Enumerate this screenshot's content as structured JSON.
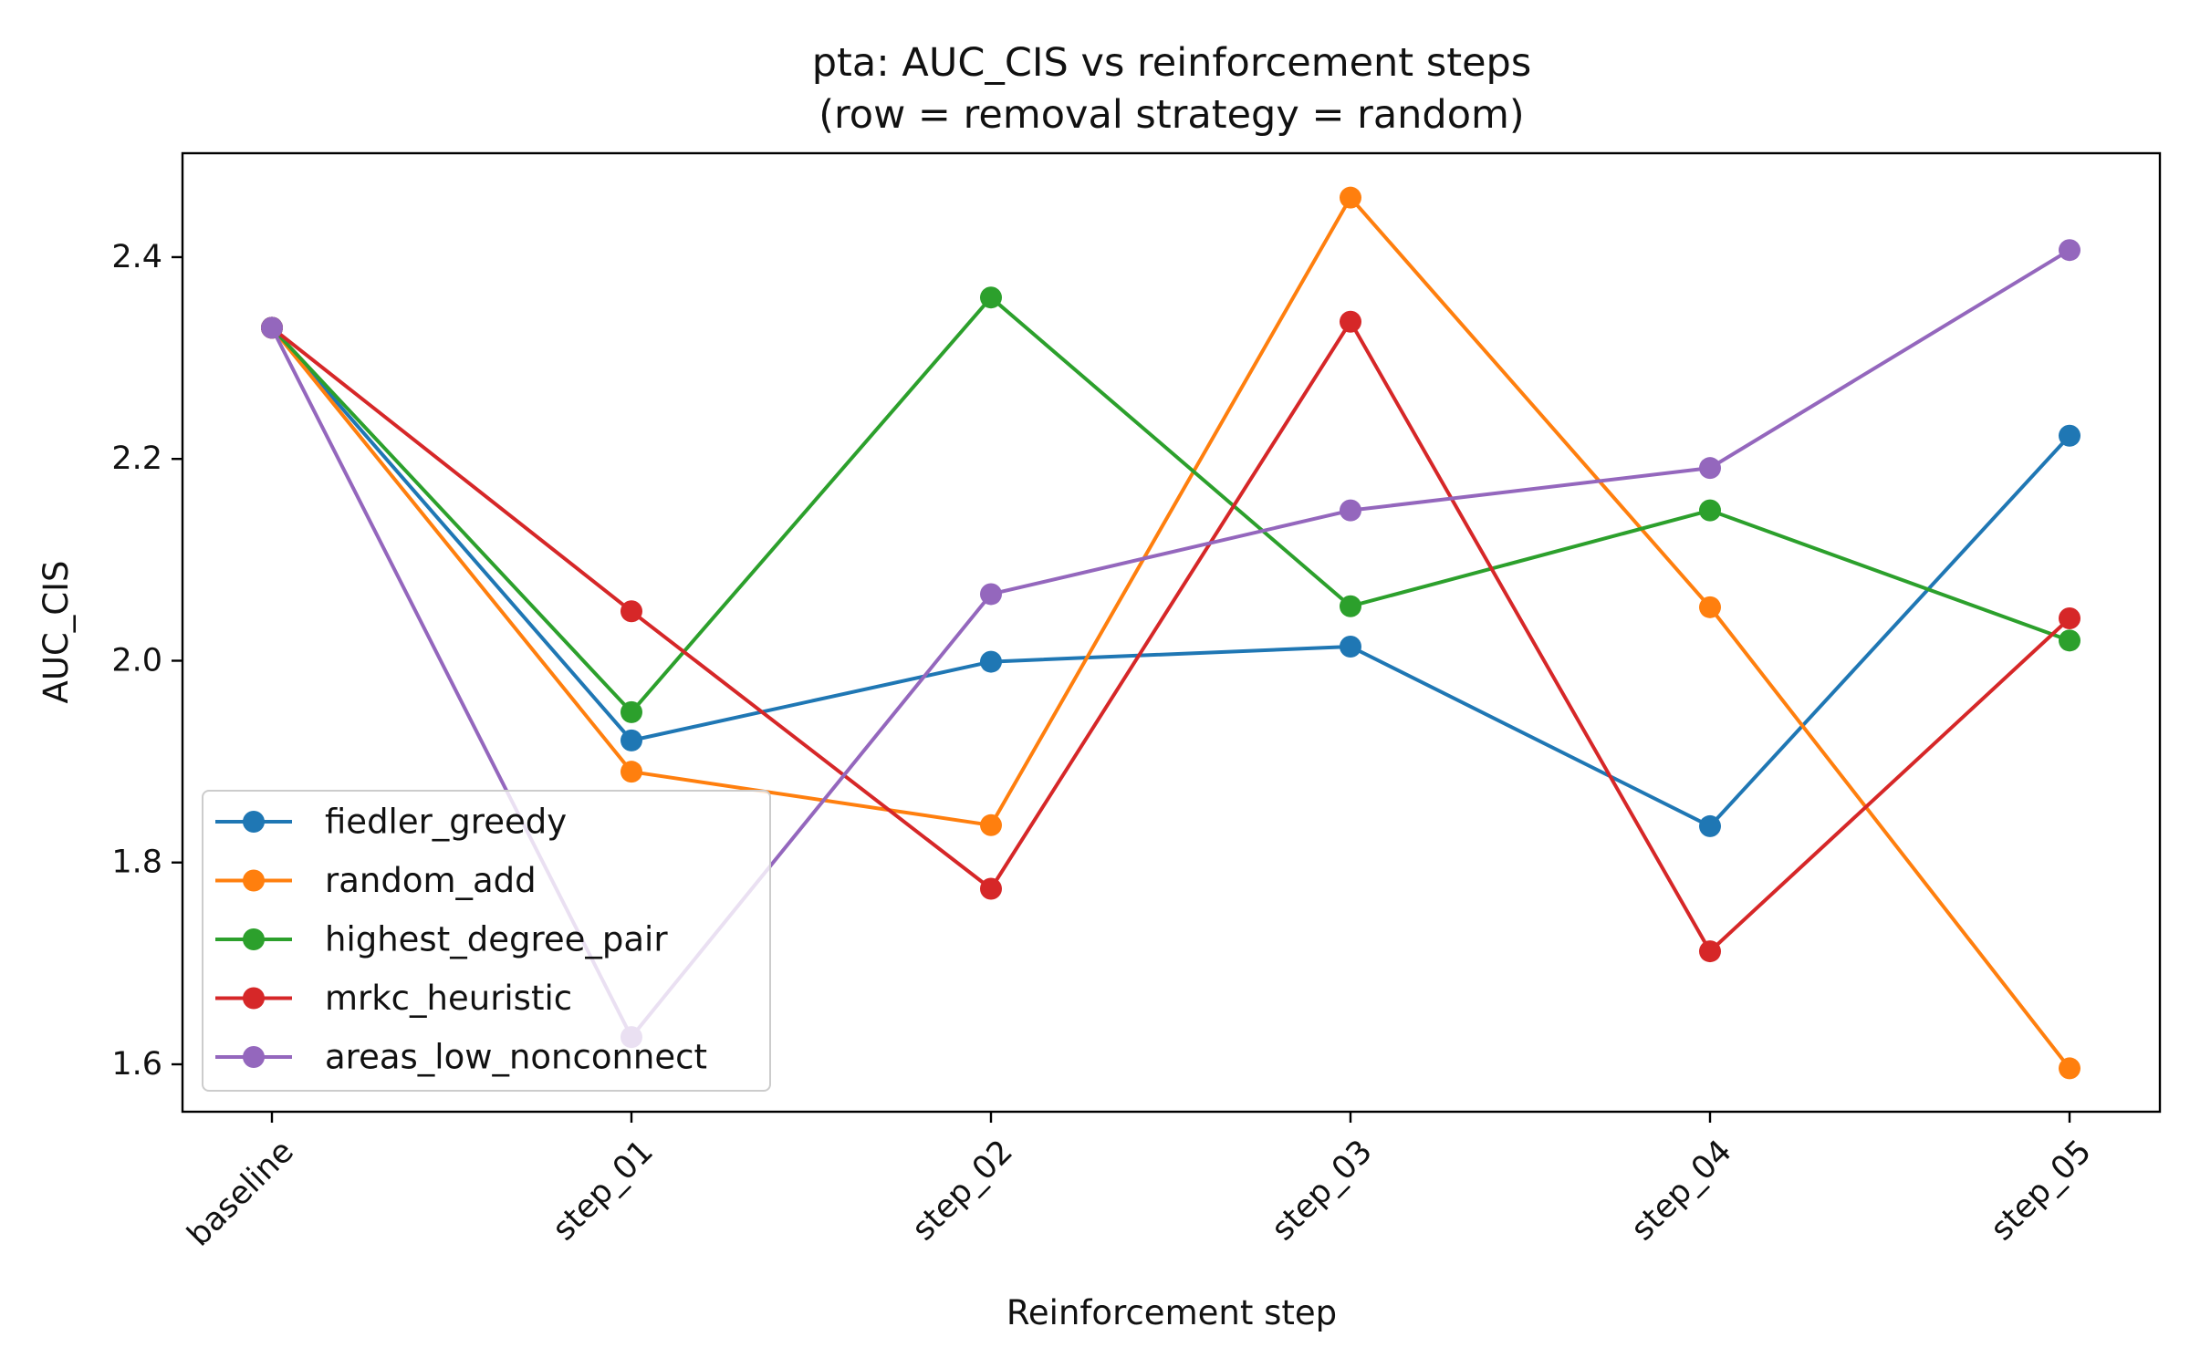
{
  "chart_data": {
    "type": "line",
    "title": "pta: AUC_CIS vs reinforcement steps",
    "subtitle": "(row = removal strategy = random)",
    "xlabel": "Reinforcement step",
    "ylabel": "AUC_CIS",
    "categories": [
      "baseline",
      "step_01",
      "step_02",
      "step_03",
      "step_04",
      "step_05"
    ],
    "ylim": [
      1.553,
      2.503
    ],
    "yticks": [
      1.6,
      1.8,
      2.0,
      2.2,
      2.4
    ],
    "ytick_labels": [
      "1.6",
      "1.8",
      "2.0",
      "2.2",
      "2.4"
    ],
    "grid": false,
    "legend_position": "lower-left",
    "series": [
      {
        "name": "fiedler_greedy",
        "color": "#1f77b4",
        "values": [
          2.33,
          1.921,
          1.999,
          2.014,
          1.836,
          2.223
        ]
      },
      {
        "name": "random_add",
        "color": "#ff7f0e",
        "values": [
          2.33,
          1.89,
          1.837,
          2.459,
          2.053,
          1.596
        ]
      },
      {
        "name": "highest_degree_pair",
        "color": "#2ca02c",
        "values": [
          2.33,
          1.949,
          2.36,
          2.054,
          2.149,
          2.02
        ]
      },
      {
        "name": "mrkc_heuristic",
        "color": "#d62728",
        "values": [
          2.33,
          2.049,
          1.774,
          2.336,
          1.712,
          2.042
        ]
      },
      {
        "name": "areas_low_nonconnect",
        "color": "#9467bd",
        "values": [
          2.33,
          1.627,
          2.066,
          2.149,
          2.191,
          2.407
        ]
      }
    ]
  }
}
